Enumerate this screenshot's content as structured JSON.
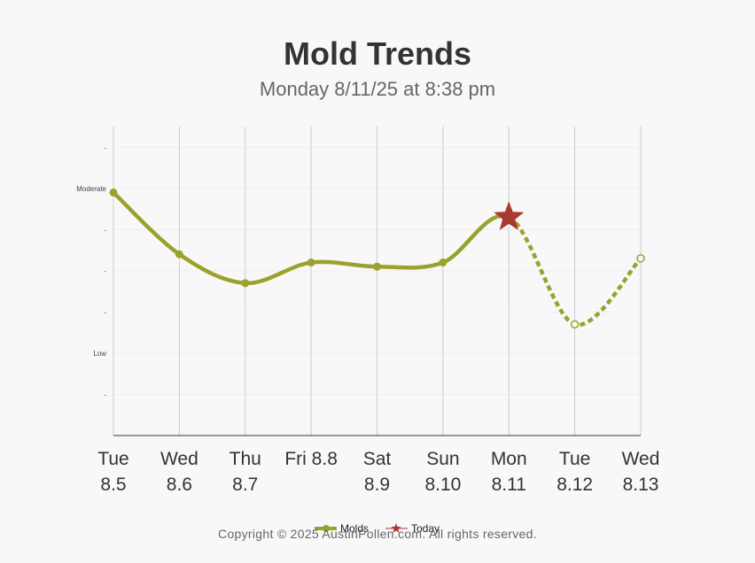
{
  "title": "Mold Trends",
  "subtitle": "Monday 8/11/25 at 8:38 pm",
  "copyright": "Copyright © 2025 AustinPollen.com.  All rights reserved.",
  "colors": {
    "series": "#9aa22e",
    "today": "#a83a32",
    "grid_vertical": "#cccccc",
    "grid_horizontal": "#eeeeee",
    "axis": "#333333"
  },
  "chart_data": {
    "type": "line",
    "title": "Mold Trends",
    "subtitle": "Monday 8/11/25 at 8:38 pm",
    "categories": [
      [
        "Tue",
        "8.5"
      ],
      [
        "Wed",
        "8.6"
      ],
      [
        "Thu",
        "8.7"
      ],
      [
        "Fri 8.8",
        ""
      ],
      [
        "Sat",
        "8.9"
      ],
      [
        "Sun",
        "8.10"
      ],
      [
        "Mon",
        "8.11"
      ],
      [
        "Tue",
        "8.12"
      ],
      [
        "Wed",
        "8.13"
      ]
    ],
    "y_ticks": [
      "",
      "Low",
      "",
      "",
      "",
      "Moderate",
      ""
    ],
    "ylim": [
      0,
      7.5
    ],
    "grid": true,
    "legend_position": "bottom",
    "series": [
      {
        "name": "Molds",
        "values": [
          5.9,
          4.4,
          3.7,
          4.2,
          4.1,
          4.2,
          5.3,
          2.7,
          4.3
        ],
        "forecast_from_index": 6
      }
    ],
    "today": {
      "name": "Today",
      "index": 6,
      "value": 5.3
    }
  }
}
